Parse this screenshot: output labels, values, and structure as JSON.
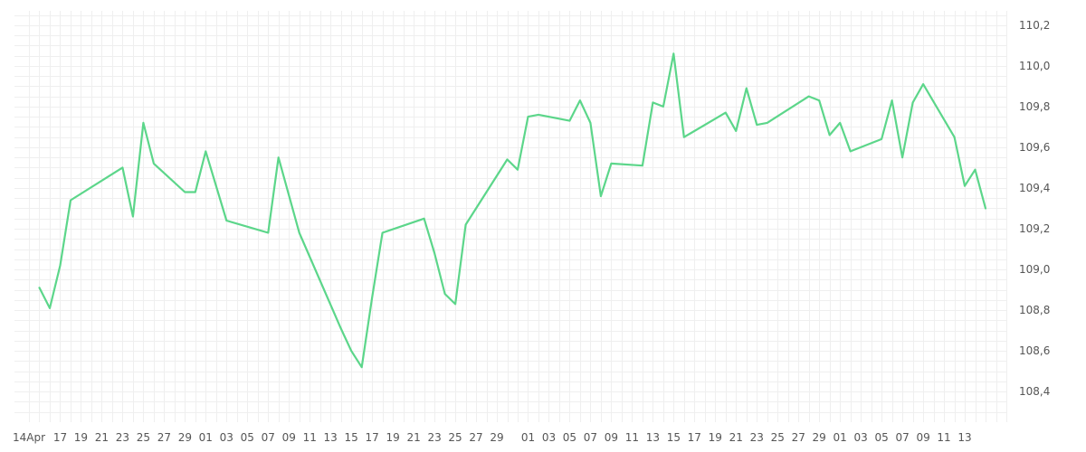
{
  "chart_data": {
    "type": "line",
    "title": "",
    "xlabel": "",
    "ylabel": "",
    "grid": true,
    "legend": "none",
    "ylim": [
      108.25,
      110.27
    ],
    "y_ticks": [
      "110,2",
      "110,0",
      "109,8",
      "109,6",
      "109,4",
      "109,2",
      "109,0",
      "108,8",
      "108,6",
      "108,4"
    ],
    "y_tick_values": [
      110.2,
      110.0,
      109.8,
      109.6,
      109.4,
      109.2,
      109.0,
      108.8,
      108.6,
      108.4
    ],
    "x_ticks": [
      "14Apr",
      "17",
      "19",
      "21",
      "23",
      "25",
      "27",
      "29",
      "01",
      "03",
      "05",
      "07",
      "09",
      "11",
      "13",
      "15",
      "17",
      "19",
      "21",
      "23",
      "25",
      "27",
      "29",
      "01",
      "03",
      "05",
      "07",
      "09",
      "11",
      "13",
      "15",
      "17",
      "19",
      "21",
      "23",
      "25",
      "27",
      "29",
      "01",
      "03",
      "05",
      "07",
      "09",
      "11",
      "13"
    ],
    "x_tick_values": [
      "2019-04-14",
      "2019-04-17",
      "2019-04-19",
      "2019-04-21",
      "2019-04-23",
      "2019-04-25",
      "2019-04-27",
      "2019-04-29",
      "2019-05-01",
      "2019-05-03",
      "2019-05-05",
      "2019-05-07",
      "2019-05-09",
      "2019-05-11",
      "2019-05-13",
      "2019-05-15",
      "2019-05-17",
      "2019-05-19",
      "2019-05-21",
      "2019-05-23",
      "2019-05-25",
      "2019-05-27",
      "2019-05-29",
      "2019-06-01",
      "2019-06-03",
      "2019-06-05",
      "2019-06-07",
      "2019-06-09",
      "2019-06-11",
      "2019-06-13",
      "2019-06-15",
      "2019-06-17",
      "2019-06-19",
      "2019-06-21",
      "2019-06-23",
      "2019-06-25",
      "2019-06-27",
      "2019-06-29",
      "2019-07-01",
      "2019-07-03",
      "2019-07-05",
      "2019-07-07",
      "2019-07-09",
      "2019-07-11",
      "2019-07-13"
    ],
    "series": [
      {
        "color": "#5cd68a",
        "points": [
          [
            "2019-04-15",
            108.91
          ],
          [
            "2019-04-16",
            108.81
          ],
          [
            "2019-04-17",
            109.02
          ],
          [
            "2019-04-18",
            109.34
          ],
          [
            "2019-04-23",
            109.5
          ],
          [
            "2019-04-24",
            109.26
          ],
          [
            "2019-04-25",
            109.72
          ],
          [
            "2019-04-26",
            109.52
          ],
          [
            "2019-04-29",
            109.38
          ],
          [
            "2019-04-30",
            109.38
          ],
          [
            "2019-05-01",
            109.58
          ],
          [
            "2019-05-03",
            109.24
          ],
          [
            "2019-05-07",
            109.18
          ],
          [
            "2019-05-08",
            109.55
          ],
          [
            "2019-05-10",
            109.18
          ],
          [
            "2019-05-14",
            108.71
          ],
          [
            "2019-05-15",
            108.6
          ],
          [
            "2019-05-16",
            108.52
          ],
          [
            "2019-05-17",
            108.86
          ],
          [
            "2019-05-18",
            109.18
          ],
          [
            "2019-05-22",
            109.25
          ],
          [
            "2019-05-23",
            109.08
          ],
          [
            "2019-05-24",
            108.88
          ],
          [
            "2019-05-25",
            108.83
          ],
          [
            "2019-05-26",
            109.22
          ],
          [
            "2019-05-30",
            109.54
          ],
          [
            "2019-05-31",
            109.49
          ],
          [
            "2019-06-01",
            109.75
          ],
          [
            "2019-06-02",
            109.76
          ],
          [
            "2019-06-05",
            109.73
          ],
          [
            "2019-06-06",
            109.83
          ],
          [
            "2019-06-07",
            109.72
          ],
          [
            "2019-06-08",
            109.36
          ],
          [
            "2019-06-09",
            109.52
          ],
          [
            "2019-06-12",
            109.51
          ],
          [
            "2019-06-13",
            109.82
          ],
          [
            "2019-06-14",
            109.8
          ],
          [
            "2019-06-15",
            110.06
          ],
          [
            "2019-06-16",
            109.65
          ],
          [
            "2019-06-20",
            109.77
          ],
          [
            "2019-06-21",
            109.68
          ],
          [
            "2019-06-22",
            109.89
          ],
          [
            "2019-06-23",
            109.71
          ],
          [
            "2019-06-24",
            109.72
          ],
          [
            "2019-06-28",
            109.85
          ],
          [
            "2019-06-29",
            109.83
          ],
          [
            "2019-06-30",
            109.66
          ],
          [
            "2019-07-01",
            109.72
          ],
          [
            "2019-07-02",
            109.58
          ],
          [
            "2019-07-05",
            109.64
          ],
          [
            "2019-07-06",
            109.83
          ],
          [
            "2019-07-07",
            109.55
          ],
          [
            "2019-07-08",
            109.82
          ],
          [
            "2019-07-09",
            109.91
          ],
          [
            "2019-07-12",
            109.65
          ],
          [
            "2019-07-13",
            109.41
          ],
          [
            "2019-07-14",
            109.49
          ],
          [
            "2019-07-15",
            109.3
          ]
        ]
      }
    ]
  }
}
